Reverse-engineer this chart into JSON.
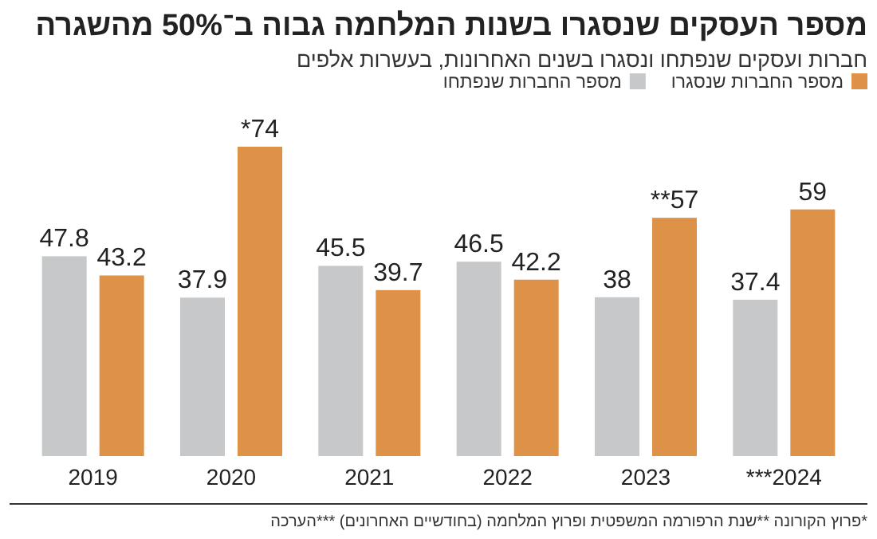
{
  "chart_data": {
    "type": "bar",
    "title": "מספר העסקים שנסגרו בשנות המלחמה גבוה ב־50% מהשגרה",
    "subtitle": "חברות ועסקים שנפתחו ונסגרו בשנים האחרונות, בעשרות אלפים",
    "categories": [
      "2019",
      "2020",
      "2021",
      "2022",
      "2023",
      "2024***"
    ],
    "series": [
      {
        "name": "מספר החברות שנפתחו",
        "color": "#c7c8ca",
        "values": [
          47.8,
          37.9,
          45.5,
          46.5,
          38,
          37.4
        ],
        "value_labels": [
          "47.8",
          "37.9",
          "45.5",
          "46.5",
          "38",
          "37.4"
        ]
      },
      {
        "name": "מספר החברות שנסגרו",
        "color": "#de9247",
        "values": [
          43.2,
          74,
          39.7,
          42.2,
          57,
          59
        ],
        "value_labels": [
          "43.2",
          "74*",
          "39.7",
          "42.2",
          "57**",
          "59"
        ]
      }
    ],
    "legend": "top right",
    "annotations": [
      "*פרוץ הקורונה **שנת הרפורמה המשפטית ופרוץ המלחמה (בחודשיים האחרונים) ***הערכה"
    ]
  }
}
